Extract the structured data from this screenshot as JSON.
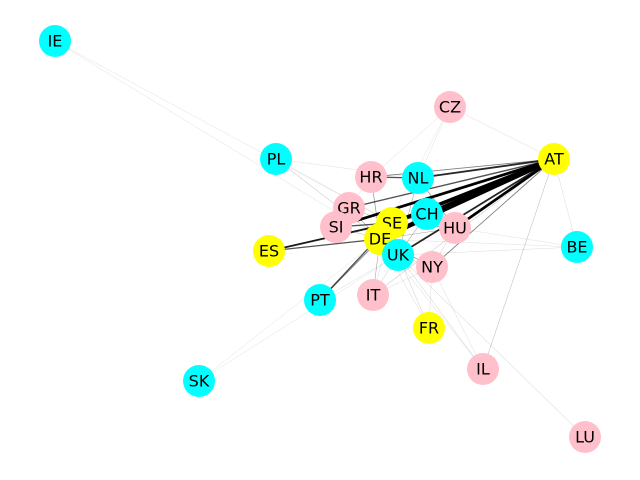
{
  "colors": {
    "cyan": "#00ffff",
    "pink": "#ffc0cb",
    "yellow": "#ffff00",
    "edge": "#000000",
    "background": "#ffffff"
  },
  "nodes": [
    {
      "id": "IE",
      "label": "IE",
      "color": "cyan"
    },
    {
      "id": "CZ",
      "label": "CZ",
      "color": "pink"
    },
    {
      "id": "PL",
      "label": "PL",
      "color": "cyan"
    },
    {
      "id": "AT",
      "label": "AT",
      "color": "yellow"
    },
    {
      "id": "HR",
      "label": "HR",
      "color": "pink"
    },
    {
      "id": "NL",
      "label": "NL",
      "color": "cyan"
    },
    {
      "id": "GR",
      "label": "GR",
      "color": "pink"
    },
    {
      "id": "CH",
      "label": "CH",
      "color": "cyan"
    },
    {
      "id": "SE",
      "label": "SE",
      "color": "yellow"
    },
    {
      "id": "SI",
      "label": "SI",
      "color": "pink"
    },
    {
      "id": "HU",
      "label": "HU",
      "color": "pink"
    },
    {
      "id": "DE",
      "label": "DE",
      "color": "yellow"
    },
    {
      "id": "ES",
      "label": "ES",
      "color": "yellow"
    },
    {
      "id": "BE",
      "label": "BE",
      "color": "cyan"
    },
    {
      "id": "UK",
      "label": "UK",
      "color": "cyan"
    },
    {
      "id": "NY",
      "label": "NY",
      "color": "pink"
    },
    {
      "id": "PT",
      "label": "PT",
      "color": "cyan"
    },
    {
      "id": "IT",
      "label": "IT",
      "color": "pink"
    },
    {
      "id": "FR",
      "label": "FR",
      "color": "yellow"
    },
    {
      "id": "SK",
      "label": "SK",
      "color": "cyan"
    },
    {
      "id": "IL",
      "label": "IL",
      "color": "pink"
    },
    {
      "id": "LU",
      "label": "LU",
      "color": "pink"
    }
  ],
  "edges": [
    {
      "source": "AT",
      "target": "DE",
      "weight": 5
    },
    {
      "source": "AT",
      "target": "SE",
      "weight": 4
    },
    {
      "source": "AT",
      "target": "CH",
      "weight": 4
    },
    {
      "source": "AT",
      "target": "HU",
      "weight": 3
    },
    {
      "source": "AT",
      "target": "SI",
      "weight": 3
    },
    {
      "source": "AT",
      "target": "UK",
      "weight": 2
    },
    {
      "source": "AT",
      "target": "NL",
      "weight": 2
    },
    {
      "source": "AT",
      "target": "HR",
      "weight": 1
    },
    {
      "source": "AT",
      "target": "GR",
      "weight": 1.5
    },
    {
      "source": "AT",
      "target": "NY",
      "weight": 1
    },
    {
      "source": "AT",
      "target": "IL",
      "weight": 0.5
    },
    {
      "source": "AT",
      "target": "IT",
      "weight": 0.5
    },
    {
      "source": "AT",
      "target": "CZ",
      "weight": 0.3
    },
    {
      "source": "AT",
      "target": "BE",
      "weight": 0.3
    },
    {
      "source": "ES",
      "target": "SE",
      "weight": 2
    },
    {
      "source": "ES",
      "target": "DE",
      "weight": 1.5
    },
    {
      "source": "ES",
      "target": "CH",
      "weight": 1
    },
    {
      "source": "PT",
      "target": "SE",
      "weight": 1.5
    },
    {
      "source": "PT",
      "target": "DE",
      "weight": 1
    },
    {
      "source": "HR",
      "target": "NL",
      "weight": 1.5
    },
    {
      "source": "HR",
      "target": "DE",
      "weight": 0.8
    },
    {
      "source": "NL",
      "target": "HU",
      "weight": 0.8
    },
    {
      "source": "NL",
      "target": "UK",
      "weight": 0.6
    },
    {
      "source": "SE",
      "target": "SI",
      "weight": 1.5
    },
    {
      "source": "SE",
      "target": "DE",
      "weight": 1
    },
    {
      "source": "SE",
      "target": "CH",
      "weight": 1
    },
    {
      "source": "SE",
      "target": "UK",
      "weight": 0.8
    },
    {
      "source": "SE",
      "target": "HU",
      "weight": 0.8
    },
    {
      "source": "DE",
      "target": "UK",
      "weight": 1
    },
    {
      "source": "DE",
      "target": "NY",
      "weight": 0.8
    },
    {
      "source": "DE",
      "target": "CH",
      "weight": 0.8
    },
    {
      "source": "DE",
      "target": "IT",
      "weight": 0.6
    },
    {
      "source": "DE",
      "target": "GR",
      "weight": 0.6
    },
    {
      "source": "DE",
      "target": "HU",
      "weight": 0.6
    },
    {
      "source": "CH",
      "target": "HU",
      "weight": 0.6
    },
    {
      "source": "CH",
      "target": "UK",
      "weight": 0.6
    },
    {
      "source": "UK",
      "target": "NY",
      "weight": 0.5
    },
    {
      "source": "UK",
      "target": "LU",
      "weight": 0.4
    },
    {
      "source": "UK",
      "target": "IL",
      "weight": 0.4
    },
    {
      "source": "UK",
      "target": "FR",
      "weight": 0.4
    },
    {
      "source": "UK",
      "target": "IT",
      "weight": 0.4
    },
    {
      "source": "UK",
      "target": "PT",
      "weight": 0.3
    },
    {
      "source": "UK",
      "target": "BE",
      "weight": 0.3
    },
    {
      "source": "PL",
      "target": "DE",
      "weight": 0.5
    },
    {
      "source": "PL",
      "target": "SE",
      "weight": 0.3
    },
    {
      "source": "PL",
      "target": "NL",
      "weight": 0.2
    },
    {
      "source": "IE",
      "target": "DE",
      "weight": 0.2
    },
    {
      "source": "IE",
      "target": "SE",
      "weight": 0.15
    },
    {
      "source": "SK",
      "target": "DE",
      "weight": 0.15
    },
    {
      "source": "SK",
      "target": "UK",
      "weight": 0.15
    },
    {
      "source": "CZ",
      "target": "HR",
      "weight": 0.2
    },
    {
      "source": "CZ",
      "target": "NL",
      "weight": 0.2
    },
    {
      "source": "CZ",
      "target": "DE",
      "weight": 0.2
    },
    {
      "source": "BE",
      "target": "DE",
      "weight": 0.2
    },
    {
      "source": "BE",
      "target": "HU",
      "weight": 0.2
    },
    {
      "source": "IT",
      "target": "SE",
      "weight": 0.3
    },
    {
      "source": "FR",
      "target": "DE",
      "weight": 0.3
    },
    {
      "source": "FR",
      "target": "NY",
      "weight": 0.2
    },
    {
      "source": "IL",
      "target": "NY",
      "weight": 0.3
    },
    {
      "source": "IL",
      "target": "DE",
      "weight": 0.3
    },
    {
      "source": "GR",
      "target": "SI",
      "weight": 0.5
    },
    {
      "source": "GR",
      "target": "SE",
      "weight": 0.5
    },
    {
      "source": "GR",
      "target": "HR",
      "weight": 0.3
    },
    {
      "source": "HU",
      "target": "NY",
      "weight": 0.4
    },
    {
      "source": "NY",
      "target": "IT",
      "weight": 0.3
    },
    {
      "source": "SI",
      "target": "DE",
      "weight": 0.5
    }
  ]
}
